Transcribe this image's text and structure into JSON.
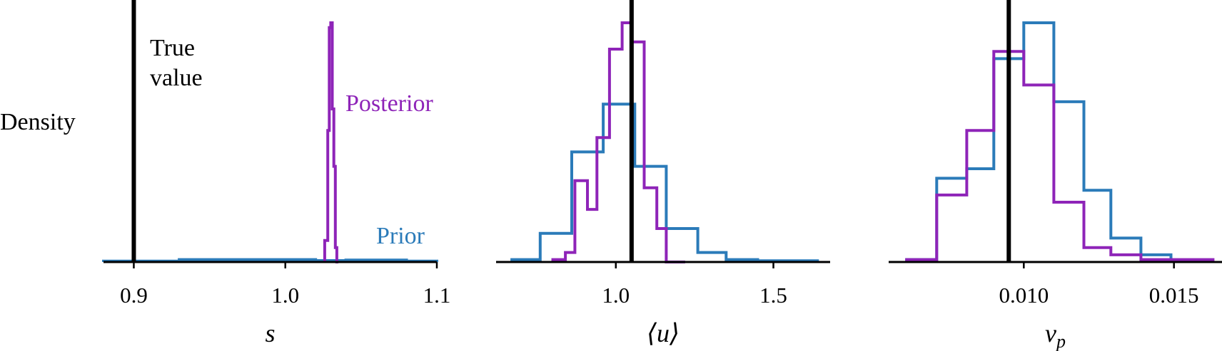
{
  "colors": {
    "prior": "#2b7bb9",
    "posterior": "#8e24b8",
    "true_value": "#000000"
  },
  "ylabel": "Density",
  "chart_data": [
    {
      "type": "histogram",
      "xlabel": "s",
      "xlim": [
        0.88,
        1.1
      ],
      "xticks": [
        0.9,
        1.0,
        1.1
      ],
      "xtick_labels": [
        "0.9",
        "1.0",
        "1.1"
      ],
      "ylim": [
        0,
        1.0
      ],
      "true_value": 0.9,
      "annotations": {
        "true_value": [
          "True",
          "value"
        ],
        "posterior": "Posterior",
        "prior": "Prior"
      },
      "series": [
        {
          "name": "Prior",
          "edges": [
            0.88,
            0.93,
            0.95,
            1.0,
            1.02,
            1.04,
            1.06,
            1.08,
            1.1
          ],
          "heights": [
            0.004,
            0.01,
            0.01,
            0.01,
            0.006,
            0.008,
            0.008,
            0.004
          ]
        },
        {
          "name": "Posterior",
          "edges": [
            1.026,
            1.028,
            1.029,
            1.03,
            1.031,
            1.032,
            1.033,
            1.034,
            1.035
          ],
          "heights": [
            0.09,
            0.55,
            0.98,
            1.0,
            0.64,
            0.4,
            0.06,
            0.0
          ]
        }
      ]
    },
    {
      "type": "histogram",
      "xlabel": "⟨u⟩",
      "xlim": [
        0.62,
        1.68
      ],
      "xticks": [
        1.0,
        1.5
      ],
      "xtick_labels": [
        "1.0",
        "1.5"
      ],
      "ylim": [
        0,
        1.0
      ],
      "true_value": 1.05,
      "series": [
        {
          "name": "Prior",
          "edges": [
            0.67,
            0.76,
            0.86,
            0.96,
            1.06,
            1.16,
            1.26,
            1.35,
            1.45,
            1.55,
            1.64
          ],
          "heights": [
            0.01,
            0.12,
            0.46,
            0.66,
            0.4,
            0.14,
            0.04,
            0.01,
            0.005,
            0.005
          ]
        },
        {
          "name": "Posterior",
          "edges": [
            0.8,
            0.84,
            0.87,
            0.91,
            0.94,
            0.98,
            1.02,
            1.05,
            1.09,
            1.13,
            1.16,
            1.2,
            1.22
          ],
          "heights": [
            0.01,
            0.04,
            0.34,
            0.22,
            0.52,
            0.89,
            1.0,
            0.92,
            0.31,
            0.14,
            0.0,
            0.0
          ]
        }
      ]
    },
    {
      "type": "histogram",
      "xlabel": "νp",
      "xlim": [
        0.0055,
        0.0166
      ],
      "xticks": [
        0.01,
        0.015
      ],
      "xtick_labels": [
        "0.010",
        "0.015"
      ],
      "ylim": [
        0,
        1.0
      ],
      "true_value": 0.0095,
      "series": [
        {
          "name": "Prior",
          "edges": [
            0.0061,
            0.0071,
            0.0081,
            0.009,
            0.01,
            0.011,
            0.012,
            0.0129,
            0.0139,
            0.0149,
            0.0159
          ],
          "heights": [
            0.01,
            0.35,
            0.39,
            0.85,
            1.0,
            0.67,
            0.3,
            0.1,
            0.03,
            0.005
          ]
        },
        {
          "name": "Posterior",
          "edges": [
            0.0061,
            0.0071,
            0.0081,
            0.009,
            0.01,
            0.011,
            0.012,
            0.0129,
            0.0139,
            0.0149,
            0.0163
          ],
          "heights": [
            0.01,
            0.28,
            0.55,
            0.88,
            0.74,
            0.25,
            0.06,
            0.03,
            0.01,
            0.01
          ]
        }
      ]
    }
  ]
}
